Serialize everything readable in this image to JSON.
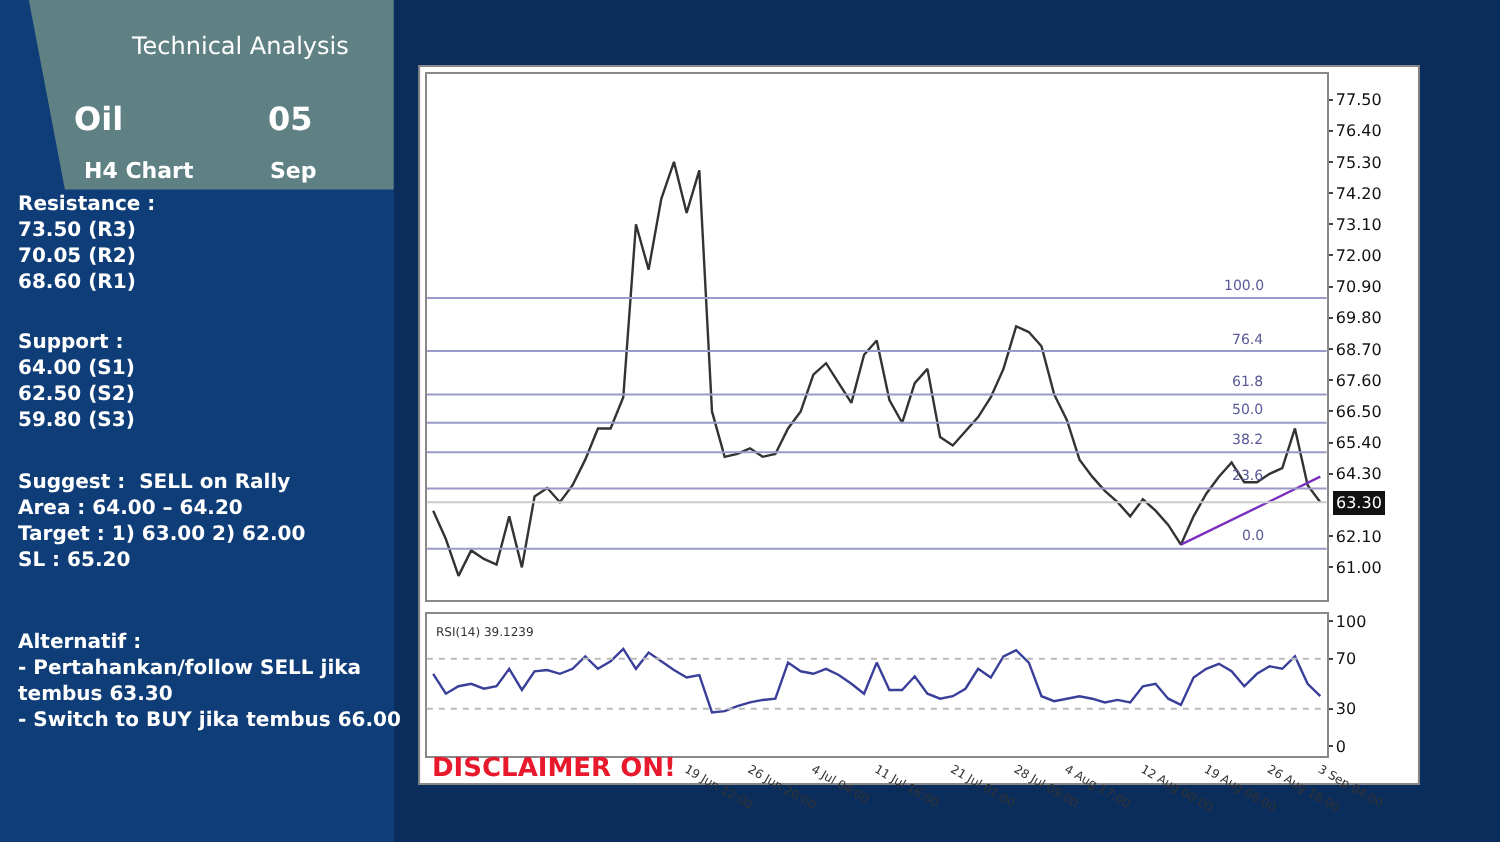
{
  "chart_data": [
    {
      "type": "line",
      "title": "Technical Analysis",
      "tick_labels": "y",
      "marker": "none",
      "line_style": "solid",
      "annotations": [
        "Oil",
        "H4 Chart",
        "05",
        "Sep",
        "Resistance :\n73.50 (R3)\n70.05 (R2)\n68.60 (R1)",
        "Support :\n64.00 (S1)\n62.50 (S2)\n59.80 (S3)",
        "Suggest :  SELL on Rally\nArea : 64.00 – 64.20\nTarget : 1) 63.00 2) 62.00\nSL : 65.20",
        "Alternatif :\n- Pertahankan/follow SELL jika\ntembus 63.30\n- Switch to BUY jika tembus 66.00",
        {
          "text": "100.0",
          "y": 70.5
        },
        {
          "text": "76.4",
          "y": 68.63
        },
        {
          "text": "61.8",
          "y": 67.1
        },
        {
          "text": "50.0",
          "y": 66.1
        },
        {
          "text": "38.2",
          "y": 65.06
        },
        {
          "text": "23.6",
          "y": 63.78
        },
        {
          "text": "0.0",
          "y": 61.66
        }
      ],
      "categories": [
        null,
        null,
        null,
        null,
        null,
        null,
        null,
        null,
        null,
        null,
        null,
        null,
        null,
        null,
        null,
        null,
        null,
        null,
        null,
        null,
        null,
        null,
        null,
        null,
        null,
        null,
        null,
        null,
        null,
        null,
        null,
        null,
        null,
        null,
        null,
        null,
        null,
        null,
        null,
        null,
        null,
        null,
        null,
        null,
        null,
        null,
        null,
        null,
        null,
        null,
        null,
        null,
        null,
        null,
        null,
        null,
        null,
        null,
        null,
        null,
        null,
        null,
        null,
        null,
        null,
        null,
        null,
        null,
        null,
        null,
        null
      ],
      "series": [
        {
          "color": "#333333",
          "values": [
            63.0,
            62.0,
            60.7,
            61.6,
            61.3,
            61.1,
            62.8,
            61.0,
            63.5,
            63.8,
            63.3,
            63.9,
            64.8,
            65.9,
            65.9,
            67.0,
            73.1,
            71.5,
            74.0,
            75.3,
            73.5,
            75.0,
            66.5,
            64.9,
            65.0,
            65.2,
            64.9,
            65.0,
            65.9,
            66.5,
            67.8,
            68.2,
            67.5,
            66.8,
            68.5,
            69.0,
            66.9,
            66.1,
            67.5,
            68.0,
            65.6,
            65.3,
            65.8,
            66.3,
            67.0,
            68.0,
            69.5,
            69.3,
            68.8,
            67.1,
            66.2,
            64.8,
            64.2,
            63.7,
            63.3,
            62.8,
            63.4,
            63.0,
            62.5,
            61.8,
            62.8,
            63.6,
            64.2,
            64.7,
            64.0,
            64.0,
            64.3,
            64.5,
            65.9,
            63.9,
            63.3
          ]
        },
        {
          "color": "#7b2fbe",
          "values": [
            null,
            null,
            null,
            null,
            null,
            null,
            null,
            null,
            null,
            null,
            null,
            null,
            null,
            null,
            null,
            null,
            null,
            null,
            null,
            null,
            null,
            null,
            null,
            null,
            null,
            null,
            null,
            null,
            null,
            null,
            null,
            null,
            null,
            null,
            null,
            null,
            null,
            null,
            null,
            null,
            null,
            null,
            null,
            null,
            null,
            null,
            null,
            null,
            null,
            null,
            null,
            null,
            null,
            null,
            null,
            null,
            null,
            null,
            null,
            61.8,
            null,
            null,
            null,
            null,
            null,
            null,
            null,
            null,
            null,
            null,
            64.2
          ]
        }
      ],
      "ylim": [
        59.85,
        78.4
      ],
      "yticks": [
        {
          "value": 61.0,
          "label": "61.00"
        },
        {
          "value": 62.1,
          "label": "62.10"
        },
        {
          "value": 64.3,
          "label": "64.30"
        },
        {
          "value": 65.4,
          "label": "65.40"
        },
        {
          "value": 66.5,
          "label": "66.50"
        },
        {
          "value": 67.6,
          "label": "67.60"
        },
        {
          "value": 68.7,
          "label": "68.70"
        },
        {
          "value": 69.8,
          "label": "69.80"
        },
        {
          "value": 70.9,
          "label": "70.90"
        },
        {
          "value": 72.0,
          "label": "72.00"
        },
        {
          "value": 73.1,
          "label": "73.10"
        },
        {
          "value": 74.2,
          "label": "74.20"
        },
        {
          "value": 75.3,
          "label": "75.30"
        },
        {
          "value": 76.4,
          "label": "76.40"
        },
        {
          "value": 77.5,
          "label": "77.50"
        }
      ],
      "ref_lines": [
        {
          "axis": "y",
          "value": 70.5,
          "color": "#9a9ac8"
        },
        {
          "axis": "y",
          "value": 68.63,
          "color": "#9a9ac8"
        },
        {
          "axis": "y",
          "value": 67.1,
          "color": "#9a9ac8"
        },
        {
          "axis": "y",
          "value": 66.1,
          "color": "#9a9ac8"
        },
        {
          "axis": "y",
          "value": 65.06,
          "color": "#9a9ac8"
        },
        {
          "axis": "y",
          "value": 63.78,
          "color": "#9a9ac8"
        },
        {
          "axis": "y",
          "value": 61.66,
          "color": "#9a9ac8"
        },
        {
          "axis": "y",
          "value": 63.3,
          "label": "63.30",
          "color": "#cccccc"
        }
      ]
    },
    {
      "type": "line",
      "marker": "none",
      "line_style": "solid",
      "annotations": [
        "RSI(14) 39.1239",
        "DISCLAIMER ON!"
      ],
      "categories": [
        null,
        null,
        null,
        null,
        null,
        null,
        null,
        null,
        null,
        null,
        null,
        null,
        null,
        null,
        null,
        null,
        null,
        null,
        null,
        null,
        "19 Jun 12:00",
        null,
        null,
        null,
        null,
        "26 Jun 20:00",
        null,
        null,
        null,
        null,
        "4 Jul 04:00",
        null,
        null,
        null,
        null,
        "11 Jul 16:00",
        null,
        null,
        null,
        null,
        null,
        "21 Jul 01:00",
        null,
        null,
        null,
        null,
        "28 Jul 09:00",
        null,
        null,
        null,
        "4 Aug 17:00",
        null,
        null,
        null,
        null,
        null,
        "12 Aug 00:00",
        null,
        null,
        null,
        null,
        "19 Aug 08:00",
        null,
        null,
        null,
        null,
        "26 Aug 16:00",
        null,
        null,
        null,
        "3 Sep 04:00"
      ],
      "series": [
        {
          "color": "#3a3f9a",
          "values": [
            58,
            42,
            48,
            50,
            46,
            48,
            62,
            45,
            60,
            61,
            58,
            62,
            72,
            62,
            68,
            78,
            62,
            75,
            68,
            61,
            55,
            57,
            27,
            28,
            32,
            35,
            37,
            38,
            67,
            60,
            58,
            62,
            57,
            50,
            42,
            67,
            45,
            45,
            56,
            42,
            38,
            40,
            46,
            62,
            55,
            72,
            77,
            67,
            40,
            36,
            38,
            40,
            38,
            35,
            37,
            35,
            48,
            50,
            38,
            33,
            55,
            62,
            66,
            60,
            48,
            58,
            64,
            62,
            72,
            50,
            40
          ]
        }
      ],
      "ylim": [
        -8,
        106
      ],
      "yticks": [
        0,
        30,
        70,
        100
      ],
      "ref_lines": [
        {
          "axis": "y",
          "value": 70,
          "color": "#bbbbbb",
          "line_style": "dotted"
        },
        {
          "axis": "y",
          "value": 30,
          "color": "#bbbbbb",
          "line_style": "dotted"
        }
      ]
    }
  ]
}
